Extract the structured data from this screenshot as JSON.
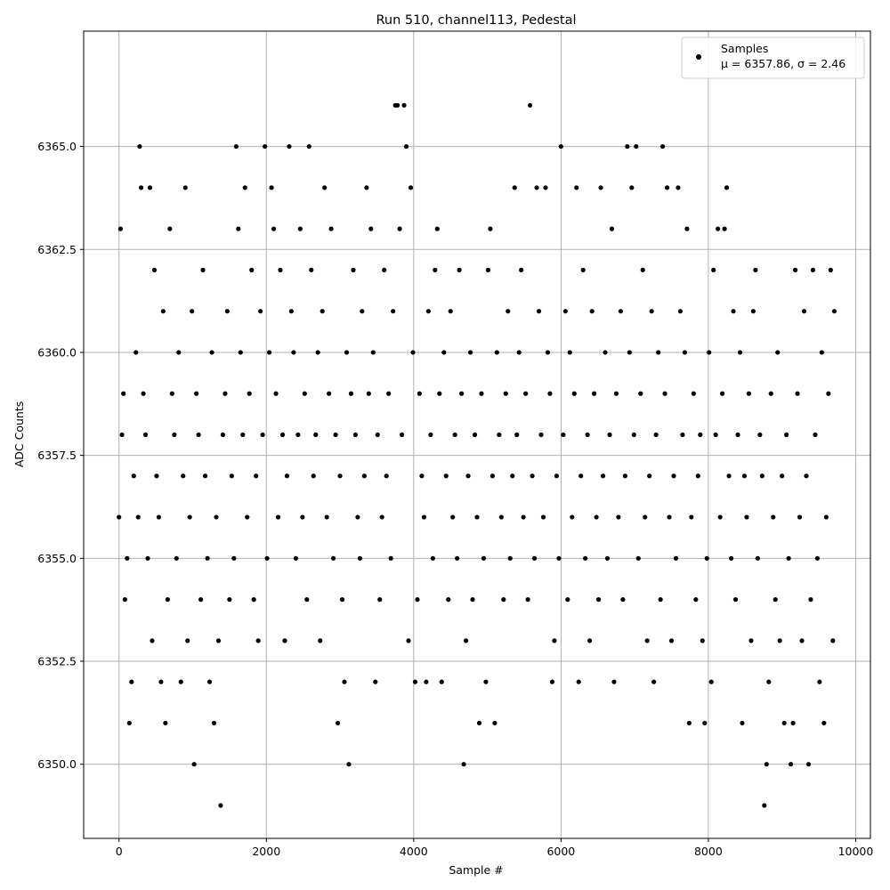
{
  "chart_data": {
    "type": "scatter",
    "title": "Run 510, channel113, Pedestal",
    "xlabel": "Sample #",
    "ylabel": "ADC Counts",
    "xlim": [
      -480,
      10200
    ],
    "ylim": [
      6348.2,
      6367.8
    ],
    "xticks": [
      0,
      2000,
      4000,
      6000,
      8000,
      10000
    ],
    "xtick_labels": [
      "0",
      "2000",
      "4000",
      "6000",
      "8000",
      "10000"
    ],
    "yticks": [
      6350.0,
      6352.5,
      6355.0,
      6357.5,
      6360.0,
      6362.5,
      6365.0
    ],
    "ytick_labels": [
      "6350.0",
      "6352.5",
      "6355.0",
      "6357.5",
      "6360.0",
      "6362.5",
      "6365.0"
    ],
    "grid": true,
    "legend": {
      "position": "top-right",
      "series_label": "Samples",
      "stats_label": "μ = 6357.86, σ = 2.46"
    },
    "series": [
      {
        "name": "Samples",
        "color": "#000000",
        "marker": "circle",
        "x": [
          0,
          20,
          40,
          60,
          80,
          110,
          140,
          170,
          200,
          230,
          260,
          280,
          300,
          330,
          360,
          390,
          420,
          450,
          480,
          510,
          540,
          570,
          600,
          630,
          660,
          690,
          720,
          750,
          780,
          810,
          840,
          870,
          900,
          930,
          960,
          990,
          1020,
          1050,
          1080,
          1110,
          1140,
          1170,
          1200,
          1230,
          1260,
          1290,
          1320,
          1350,
          1380,
          1410,
          1440,
          1470,
          1500,
          1530,
          1560,
          1590,
          1620,
          1650,
          1680,
          1710,
          1740,
          1770,
          1800,
          1830,
          1860,
          1890,
          1920,
          1950,
          1980,
          2010,
          2040,
          2070,
          2100,
          2130,
          2160,
          2190,
          2220,
          2250,
          2280,
          2310,
          2340,
          2370,
          2400,
          2430,
          2460,
          2490,
          2520,
          2550,
          2580,
          2610,
          2640,
          2670,
          2700,
          2730,
          2760,
          2790,
          2820,
          2850,
          2880,
          2910,
          2940,
          2970,
          3000,
          3030,
          3060,
          3090,
          3120,
          3150,
          3180,
          3210,
          3240,
          3270,
          3300,
          3330,
          3360,
          3390,
          3420,
          3450,
          3480,
          3510,
          3540,
          3570,
          3600,
          3630,
          3660,
          3690,
          3720,
          3750,
          3780,
          3810,
          3840,
          3870,
          3900,
          3930,
          3960,
          3990,
          4020,
          4050,
          4080,
          4110,
          4140,
          4170,
          4200,
          4230,
          4260,
          4290,
          4320,
          4350,
          4380,
          4410,
          4440,
          4470,
          4500,
          4530,
          4560,
          4590,
          4620,
          4650,
          4680,
          4710,
          4740,
          4770,
          4800,
          4830,
          4860,
          4890,
          4920,
          4950,
          4980,
          5010,
          5040,
          5070,
          5100,
          5130,
          5160,
          5190,
          5220,
          5250,
          5280,
          5310,
          5340,
          5370,
          5400,
          5430,
          5460,
          5490,
          5520,
          5550,
          5580,
          5610,
          5640,
          5670,
          5700,
          5730,
          5760,
          5790,
          5820,
          5850,
          5880,
          5910,
          5940,
          5970,
          6000,
          6030,
          6060,
          6090,
          6120,
          6150,
          6180,
          6210,
          6240,
          6270,
          6300,
          6330,
          6360,
          6390,
          6420,
          6450,
          6480,
          6510,
          6540,
          6570,
          6600,
          6630,
          6660,
          6690,
          6720,
          6750,
          6780,
          6810,
          6840,
          6870,
          6900,
          6930,
          6960,
          6990,
          7020,
          7050,
          7080,
          7110,
          7140,
          7170,
          7200,
          7230,
          7260,
          7290,
          7320,
          7350,
          7380,
          7410,
          7440,
          7470,
          7500,
          7530,
          7560,
          7590,
          7620,
          7650,
          7680,
          7710,
          7740,
          7770,
          7800,
          7830,
          7860,
          7890,
          7920,
          7950,
          7980,
          8010,
          8040,
          8070,
          8100,
          8130,
          8160,
          8190,
          8220,
          8250,
          8280,
          8310,
          8340,
          8370,
          8400,
          8430,
          8460,
          8490,
          8520,
          8550,
          8580,
          8610,
          8640,
          8670,
          8700,
          8730,
          8760,
          8790,
          8820,
          8850,
          8880,
          8910,
          8940,
          8970,
          9000,
          9030,
          9060,
          9090,
          9120,
          9150,
          9180,
          9210,
          9240,
          9270,
          9300,
          9330,
          9360,
          9390,
          9420,
          9450,
          9480,
          9510,
          9540,
          9570,
          9600,
          9630,
          9660,
          9690,
          9710
        ],
        "y": [
          6356,
          6363,
          6358,
          6359,
          6354,
          6355,
          6351,
          6352,
          6357,
          6360,
          6356,
          6365,
          6364,
          6359,
          6358,
          6355,
          6364,
          6353,
          6362,
          6357,
          6356,
          6352,
          6361,
          6351,
          6354,
          6363,
          6359,
          6358,
          6355,
          6360,
          6352,
          6357,
          6364,
          6353,
          6356,
          6361,
          6350,
          6359,
          6358,
          6354,
          6362,
          6357,
          6355,
          6352,
          6360,
          6351,
          6356,
          6353,
          6349,
          6358,
          6359,
          6361,
          6354,
          6357,
          6355,
          6365,
          6363,
          6360,
          6358,
          6364,
          6356,
          6359,
          6362,
          6354,
          6357,
          6353,
          6361,
          6358,
          6365,
          6355,
          6360,
          6364,
          6363,
          6359,
          6356,
          6362,
          6358,
          6353,
          6357,
          6365,
          6361,
          6360,
          6355,
          6358,
          6363,
          6356,
          6359,
          6354,
          6365,
          6362,
          6357,
          6358,
          6360,
          6353,
          6361,
          6364,
          6356,
          6359,
          6363,
          6355,
          6358,
          6351,
          6357,
          6354,
          6352,
          6360,
          6350,
          6359,
          6362,
          6358,
          6356,
          6355,
          6361,
          6357,
          6364,
          6359,
          6363,
          6360,
          6352,
          6358,
          6354,
          6356,
          6362,
          6357,
          6359,
          6355,
          6361,
          6366,
          6366,
          6363,
          6358,
          6366,
          6365,
          6353,
          6364,
          6360,
          6352,
          6354,
          6359,
          6357,
          6356,
          6352,
          6361,
          6358,
          6355,
          6362,
          6363,
          6359,
          6352,
          6360,
          6357,
          6354,
          6361,
          6356,
          6358,
          6355,
          6362,
          6359,
          6350,
          6353,
          6357,
          6360,
          6354,
          6358,
          6356,
          6351,
          6359,
          6355,
          6352,
          6362,
          6363,
          6357,
          6351,
          6360,
          6358,
          6356,
          6354,
          6359,
          6361,
          6355,
          6357,
          6364,
          6358,
          6360,
          6362,
          6356,
          6359,
          6354,
          6366,
          6357,
          6355,
          6364,
          6361,
          6358,
          6356,
          6364,
          6360,
          6359,
          6352,
          6353,
          6357,
          6355,
          6365,
          6358,
          6361,
          6354,
          6360,
          6356,
          6359,
          6364,
          6352,
          6357,
          6362,
          6355,
          6358,
          6353,
          6361,
          6359,
          6356,
          6354,
          6364,
          6357,
          6360,
          6355,
          6358,
          6363,
          6352,
          6359,
          6356,
          6361,
          6354,
          6357,
          6365,
          6360,
          6364,
          6358,
          6365,
          6355,
          6359,
          6362,
          6356,
          6353,
          6357,
          6361,
          6352,
          6358,
          6360,
          6354,
          6365,
          6359,
          6364,
          6356,
          6353,
          6357,
          6355,
          6364,
          6361,
          6358,
          6360,
          6363,
          6351,
          6356,
          6359,
          6354,
          6357,
          6358,
          6353,
          6351,
          6355,
          6360,
          6352,
          6362,
          6358,
          6363,
          6356,
          6359,
          6363,
          6364,
          6357,
          6355,
          6361,
          6354,
          6358,
          6360,
          6351,
          6357,
          6356,
          6359,
          6353,
          6361,
          6362,
          6355,
          6358,
          6357,
          6349,
          6350,
          6352,
          6359,
          6356,
          6354,
          6360,
          6353,
          6357,
          6351,
          6358,
          6355,
          6350,
          6351,
          6362,
          6359,
          6356,
          6353,
          6361,
          6357,
          6350,
          6354,
          6362,
          6358,
          6355,
          6352,
          6360,
          6351,
          6356,
          6359,
          6362,
          6353,
          6361
        ]
      }
    ]
  }
}
